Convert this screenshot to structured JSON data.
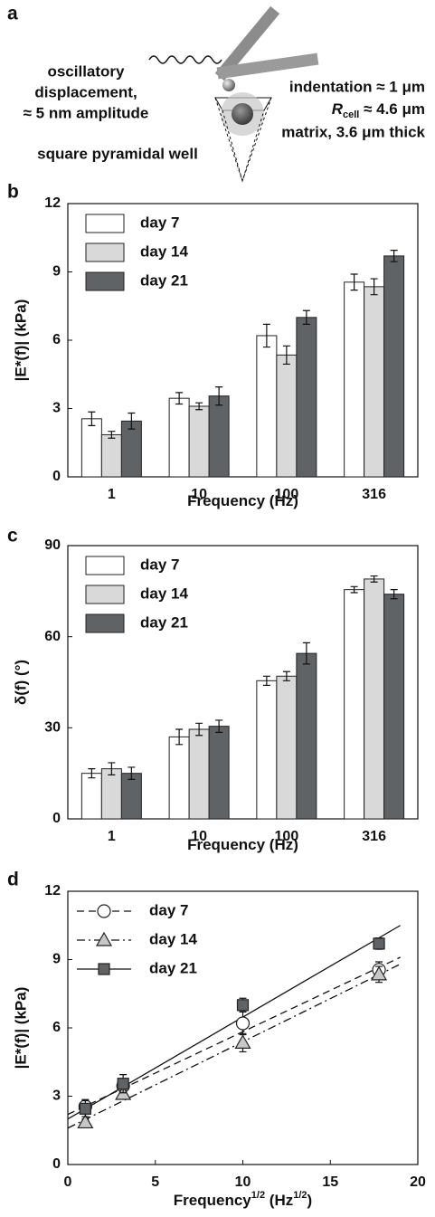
{
  "diagram": {
    "panel": "a",
    "left_text": [
      "oscillatory",
      "displacement,",
      "≈ 5 nm amplitude"
    ],
    "well_text": "square pyramidal well",
    "indentation": "indentation ≈ 1 μm",
    "rcell": [
      "R",
      "cell",
      " ≈ 4.6 μm"
    ],
    "matrix": "matrix, 3.6 μm thick"
  },
  "chart_data": [
    {
      "type": "bar",
      "panel": "b",
      "ylabel": "|E*(f)| (kPa)",
      "xlabel": [
        "Frequency (Hz)"
      ],
      "categories": [
        "1",
        "10",
        "100",
        "316"
      ],
      "ylim": [
        0,
        12
      ],
      "yticks": [
        0,
        3,
        6,
        9,
        12
      ],
      "legend": "upper-left",
      "series": [
        {
          "name": "day 7",
          "color": "#ffffff",
          "values": [
            2.55,
            3.45,
            6.2,
            8.55
          ],
          "errors": [
            0.3,
            0.25,
            0.5,
            0.35
          ]
        },
        {
          "name": "day 14",
          "color": "#d9d9d9",
          "values": [
            1.85,
            3.1,
            5.35,
            8.35
          ],
          "errors": [
            0.15,
            0.15,
            0.4,
            0.35
          ]
        },
        {
          "name": "day 21",
          "color": "#5f6366",
          "values": [
            2.45,
            3.55,
            7.0,
            9.7
          ],
          "errors": [
            0.35,
            0.4,
            0.3,
            0.25
          ]
        }
      ]
    },
    {
      "type": "bar",
      "panel": "c",
      "ylabel": "δ(f) (°)",
      "xlabel": [
        "Frequency (Hz)"
      ],
      "categories": [
        "1",
        "10",
        "100",
        "316"
      ],
      "ylim": [
        0,
        90
      ],
      "yticks": [
        0,
        30,
        60,
        90
      ],
      "legend": "upper-left",
      "series": [
        {
          "name": "day 7",
          "color": "#ffffff",
          "values": [
            15,
            27,
            45.5,
            75.5
          ],
          "errors": [
            1.5,
            2.5,
            1.5,
            1
          ]
        },
        {
          "name": "day 14",
          "color": "#d9d9d9",
          "values": [
            16.5,
            29.5,
            47,
            79
          ],
          "errors": [
            2,
            2,
            1.5,
            1
          ]
        },
        {
          "name": "day 21",
          "color": "#5f6366",
          "values": [
            15,
            30.5,
            54.5,
            74
          ],
          "errors": [
            2,
            2,
            3.5,
            1.5
          ]
        }
      ]
    },
    {
      "type": "scatter",
      "panel": "d",
      "ylabel": "|E*(f)| (kPa)",
      "xlabel": [
        "Frequency",
        "1/2",
        " (Hz",
        "1/2",
        ")"
      ],
      "xlim": [
        0,
        20
      ],
      "xticks": [
        0,
        5,
        10,
        15,
        20
      ],
      "ylim": [
        0,
        12
      ],
      "yticks": [
        0,
        3,
        6,
        9,
        12
      ],
      "legend": "upper-left",
      "series": [
        {
          "name": "day 7",
          "color": "#ffffff",
          "marker": "circle",
          "linestyle": "dashed",
          "x": [
            1,
            3.16,
            10,
            17.78
          ],
          "values": [
            2.55,
            3.45,
            6.2,
            8.55
          ],
          "errors": [
            0.3,
            0.25,
            0.5,
            0.35
          ],
          "fit": {
            "x": [
              0,
              19
            ],
            "y": [
              2.2,
              9.1
            ]
          }
        },
        {
          "name": "day 14",
          "color": "#c8c8c8",
          "marker": "triangle",
          "linestyle": "dashdot",
          "x": [
            1,
            3.16,
            10,
            17.78
          ],
          "values": [
            1.85,
            3.1,
            5.35,
            8.35
          ],
          "errors": [
            0.15,
            0.15,
            0.4,
            0.35
          ],
          "fit": {
            "x": [
              0,
              19
            ],
            "y": [
              1.6,
              8.8
            ]
          }
        },
        {
          "name": "day 21",
          "color": "#5f6366",
          "marker": "square",
          "linestyle": "solid",
          "x": [
            1,
            3.16,
            10,
            17.78
          ],
          "values": [
            2.45,
            3.55,
            7.0,
            9.7
          ],
          "errors": [
            0.35,
            0.4,
            0.3,
            0.25
          ],
          "fit": {
            "x": [
              0,
              19
            ],
            "y": [
              2.0,
              10.5
            ]
          }
        }
      ]
    }
  ]
}
